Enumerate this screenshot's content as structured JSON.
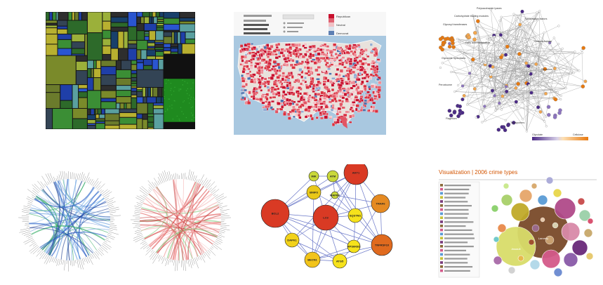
{
  "map": {
    "legend": [
      "Republican",
      "Neutral",
      "Democrat"
    ]
  },
  "network": {
    "nodes": {
      "bcl2": "BCL2",
      "lc3": "LC3",
      "akt1": "AKT1",
      "traf6": "TRAF6",
      "tnfrsf10": "TNFRSF10",
      "bnip3": "BNIP3",
      "atm": "ATM",
      "imk": "IMK",
      "dapk1": "DAPK1",
      "becn1": "BECN1",
      "atg5": "ATG5",
      "sqstm1": "SQSTM1",
      "mapk8": "MAPK8",
      "rps6kb1": "RPS6KB1"
    }
  },
  "bubble": {
    "title": "Visualization | 2006 crime types",
    "center_label": "Larceny",
    "side_label": "Assault"
  },
  "metabolic": {
    "labels": {
      "carbohydrate": "Carbohydrate binding modules",
      "polysaccharide": "Polysaccharide lyases",
      "glycosyl": "Glycosyl transferases",
      "transcription": "Transcription factors",
      "fatty": "Fatty acid metabolism",
      "oxidoreductase": "Oxidoreductase",
      "glycoside": "Glycoside hydrolases",
      "ribosome": "Ribosome",
      "peroxisome": "Peroxisome",
      "flagellum": "Flagellum",
      "transporters": "Transporters"
    },
    "colorbar_left": "Glycolate",
    "colorbar_right": "Cellulose"
  }
}
